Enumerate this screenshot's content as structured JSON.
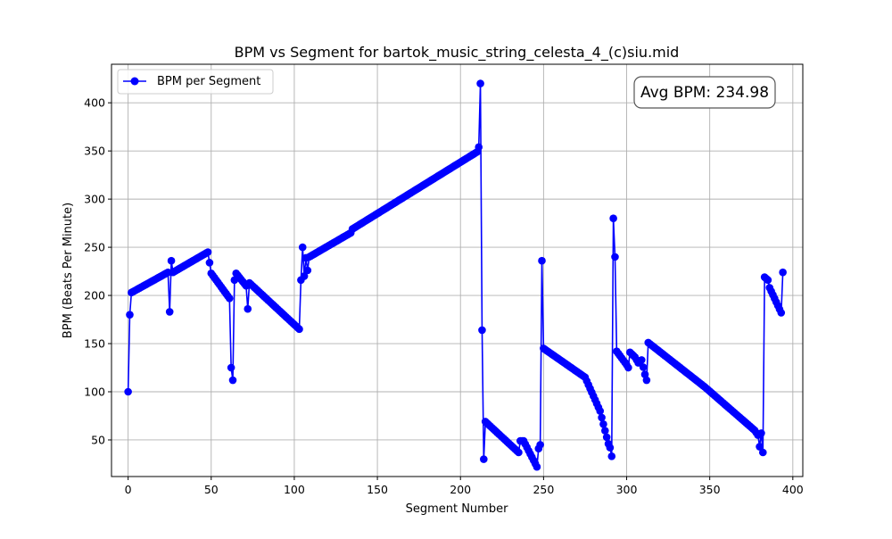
{
  "chart_data": {
    "type": "line",
    "title": "BPM vs Segment for bartok_music_string_celesta_4_(c)siu.mid",
    "xlabel": "Segment Number",
    "ylabel": "BPM (Beats Per Minute)",
    "xlim": [
      -10,
      406
    ],
    "ylim": [
      12,
      440
    ],
    "xticks": [
      0,
      50,
      100,
      150,
      200,
      250,
      300,
      350,
      400
    ],
    "yticks": [
      50,
      100,
      150,
      200,
      250,
      300,
      350,
      400
    ],
    "grid": true,
    "legend": {
      "position": "top-left",
      "entries": [
        "BPM per Segment"
      ]
    },
    "annotation": "Avg BPM: 234.98",
    "series": [
      {
        "name": "BPM per Segment",
        "color": "#0000ff",
        "marker": "circle",
        "anchors": [
          [
            0,
            100
          ],
          [
            1,
            180
          ],
          [
            2,
            203
          ],
          [
            24,
            224
          ],
          [
            25,
            183
          ],
          [
            26,
            236
          ],
          [
            27,
            224
          ],
          [
            48,
            245
          ],
          [
            49,
            234
          ],
          [
            50,
            223
          ],
          [
            61,
            197
          ],
          [
            62,
            125
          ],
          [
            63,
            112
          ],
          [
            64,
            216
          ],
          [
            65,
            223
          ],
          [
            71,
            210
          ],
          [
            72,
            186
          ],
          [
            73,
            213
          ],
          [
            103,
            165
          ],
          [
            104,
            216
          ],
          [
            105,
            250
          ],
          [
            106,
            220
          ],
          [
            107,
            239
          ],
          [
            108,
            226
          ],
          [
            109,
            240
          ],
          [
            134,
            265
          ],
          [
            135,
            269
          ],
          [
            210,
            349
          ],
          [
            211,
            354
          ],
          [
            212,
            420
          ],
          [
            213,
            164
          ],
          [
            214,
            30
          ],
          [
            215,
            69
          ],
          [
            235,
            37
          ],
          [
            236,
            49
          ],
          [
            238,
            49
          ],
          [
            246,
            22
          ],
          [
            247,
            41
          ],
          [
            248,
            45
          ],
          [
            249,
            236
          ],
          [
            250,
            145
          ],
          [
            275,
            115
          ],
          [
            284,
            80
          ],
          [
            289,
            46
          ],
          [
            290,
            42
          ],
          [
            291,
            33
          ],
          [
            292,
            280
          ],
          [
            293,
            240
          ],
          [
            294,
            142
          ],
          [
            300,
            128
          ],
          [
            301,
            125
          ],
          [
            302,
            141
          ],
          [
            305,
            136
          ],
          [
            307,
            130
          ],
          [
            309,
            133
          ],
          [
            311,
            118
          ],
          [
            312,
            112
          ],
          [
            313,
            151
          ],
          [
            347,
            105
          ],
          [
            377,
            60
          ],
          [
            379,
            55
          ],
          [
            380,
            43
          ],
          [
            381,
            57
          ],
          [
            382,
            37
          ],
          [
            383,
            219
          ],
          [
            385,
            216
          ],
          [
            386,
            208
          ],
          [
            393,
            182
          ],
          [
            394,
            224
          ]
        ]
      }
    ]
  }
}
